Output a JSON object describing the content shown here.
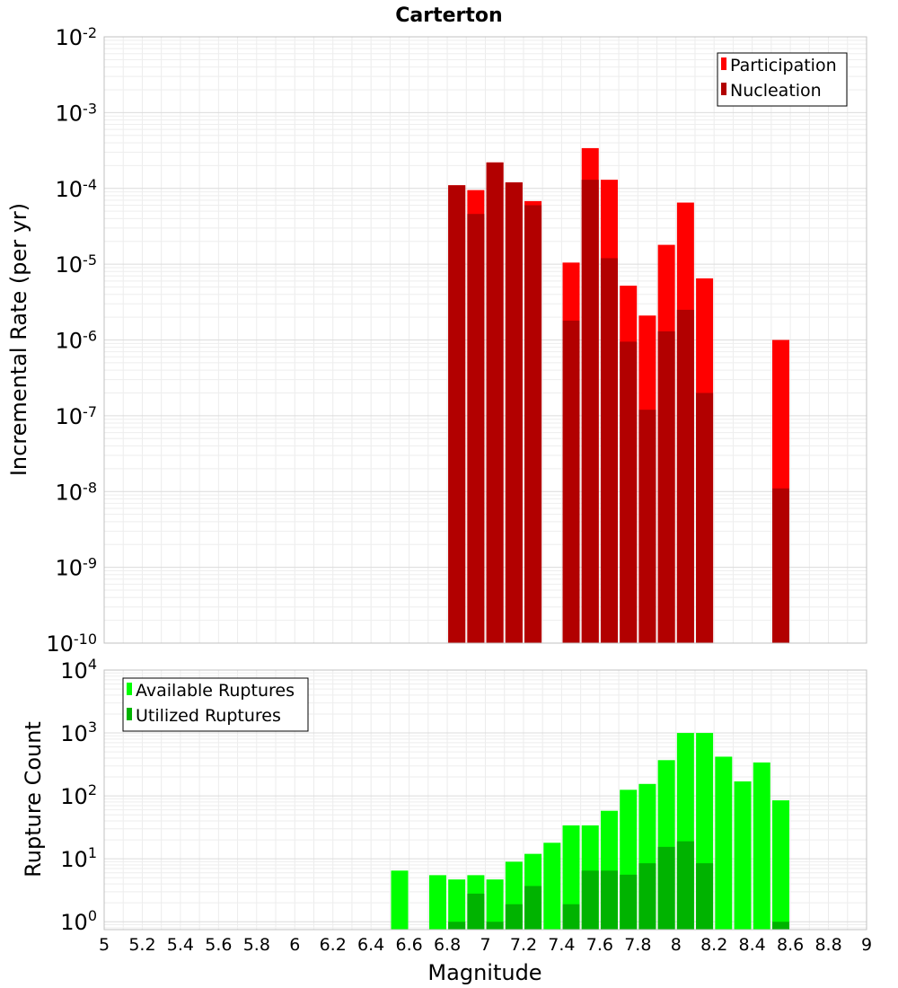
{
  "chart_data": [
    {
      "type": "bar",
      "title": "Carterton",
      "ylabel": "Incremental Rate (per yr)",
      "xlabel": "",
      "y_scale": "log",
      "ylim": [
        1e-10,
        0.01
      ],
      "xlim": [
        5,
        9
      ],
      "y_tick_exponents": [
        "-10",
        "-9",
        "-8",
        "-7",
        "-6",
        "-5",
        "-4",
        "-3",
        "-2"
      ],
      "legend_position": "top-right",
      "grid": true,
      "series": [
        {
          "name": "Participation",
          "color": "#ff0000",
          "points": [
            {
              "x": 6.85,
              "y": 0.00011
            },
            {
              "x": 6.95,
              "y": 9.5e-05
            },
            {
              "x": 7.05,
              "y": 0.00022
            },
            {
              "x": 7.15,
              "y": 0.00012
            },
            {
              "x": 7.25,
              "y": 6.8e-05
            },
            {
              "x": 7.45,
              "y": 1.05e-05
            },
            {
              "x": 7.55,
              "y": 0.00034
            },
            {
              "x": 7.65,
              "y": 0.00013
            },
            {
              "x": 7.75,
              "y": 5.2e-06
            },
            {
              "x": 7.85,
              "y": 2.1e-06
            },
            {
              "x": 7.95,
              "y": 1.8e-05
            },
            {
              "x": 8.05,
              "y": 6.5e-05
            },
            {
              "x": 8.15,
              "y": 6.5e-06
            },
            {
              "x": 8.55,
              "y": 1e-06
            }
          ]
        },
        {
          "name": "Nucleation",
          "color": "#b20000",
          "points": [
            {
              "x": 6.85,
              "y": 0.00011
            },
            {
              "x": 6.95,
              "y": 4.6e-05
            },
            {
              "x": 7.05,
              "y": 0.00022
            },
            {
              "x": 7.15,
              "y": 0.00012
            },
            {
              "x": 7.25,
              "y": 6e-05
            },
            {
              "x": 7.45,
              "y": 1.8e-06
            },
            {
              "x": 7.55,
              "y": 0.00013
            },
            {
              "x": 7.65,
              "y": 1.2e-05
            },
            {
              "x": 7.75,
              "y": 9.5e-07
            },
            {
              "x": 7.85,
              "y": 1.2e-07
            },
            {
              "x": 7.95,
              "y": 1.3e-06
            },
            {
              "x": 8.05,
              "y": 2.5e-06
            },
            {
              "x": 8.15,
              "y": 2e-07
            },
            {
              "x": 8.55,
              "y": 1.1e-08
            }
          ]
        }
      ]
    },
    {
      "type": "bar",
      "title": "",
      "ylabel": "Rupture Count",
      "xlabel": "Magnitude",
      "y_scale": "log",
      "ylim": [
        0.75,
        10000
      ],
      "xlim": [
        5,
        9
      ],
      "x_ticks": [
        "5",
        "5.2",
        "5.4",
        "5.6",
        "5.8",
        "6",
        "6.2",
        "6.4",
        "6.6",
        "6.8",
        "7",
        "7.2",
        "7.4",
        "7.6",
        "7.8",
        "8",
        "8.2",
        "8.4",
        "8.6",
        "8.8",
        "9"
      ],
      "y_tick_exponents": [
        "0",
        "1",
        "2",
        "3",
        "4"
      ],
      "legend_position": "top-left",
      "grid": true,
      "series": [
        {
          "name": "Available Ruptures",
          "color": "#00ff00",
          "points": [
            {
              "x": 6.55,
              "y": 6.5
            },
            {
              "x": 6.75,
              "y": 5.5
            },
            {
              "x": 6.85,
              "y": 4.7
            },
            {
              "x": 6.95,
              "y": 5.5
            },
            {
              "x": 7.05,
              "y": 4.7
            },
            {
              "x": 7.15,
              "y": 9
            },
            {
              "x": 7.25,
              "y": 12
            },
            {
              "x": 7.35,
              "y": 18
            },
            {
              "x": 7.45,
              "y": 34
            },
            {
              "x": 7.55,
              "y": 34
            },
            {
              "x": 7.65,
              "y": 58
            },
            {
              "x": 7.75,
              "y": 125
            },
            {
              "x": 7.85,
              "y": 155
            },
            {
              "x": 7.95,
              "y": 370
            },
            {
              "x": 8.05,
              "y": 1000
            },
            {
              "x": 8.15,
              "y": 1000
            },
            {
              "x": 8.25,
              "y": 420
            },
            {
              "x": 8.35,
              "y": 170
            },
            {
              "x": 8.45,
              "y": 340
            },
            {
              "x": 8.55,
              "y": 85
            }
          ]
        },
        {
          "name": "Utilized Ruptures",
          "color": "#00b300",
          "points": [
            {
              "x": 6.85,
              "y": 1
            },
            {
              "x": 6.95,
              "y": 2.8
            },
            {
              "x": 7.05,
              "y": 1
            },
            {
              "x": 7.15,
              "y": 1.9
            },
            {
              "x": 7.25,
              "y": 3.7
            },
            {
              "x": 7.45,
              "y": 1.9
            },
            {
              "x": 7.55,
              "y": 6.5
            },
            {
              "x": 7.65,
              "y": 6.5
            },
            {
              "x": 7.75,
              "y": 5.6
            },
            {
              "x": 7.85,
              "y": 8.5
            },
            {
              "x": 7.95,
              "y": 15.5
            },
            {
              "x": 8.05,
              "y": 19
            },
            {
              "x": 8.15,
              "y": 8.5
            },
            {
              "x": 8.55,
              "y": 1
            }
          ]
        }
      ]
    }
  ]
}
